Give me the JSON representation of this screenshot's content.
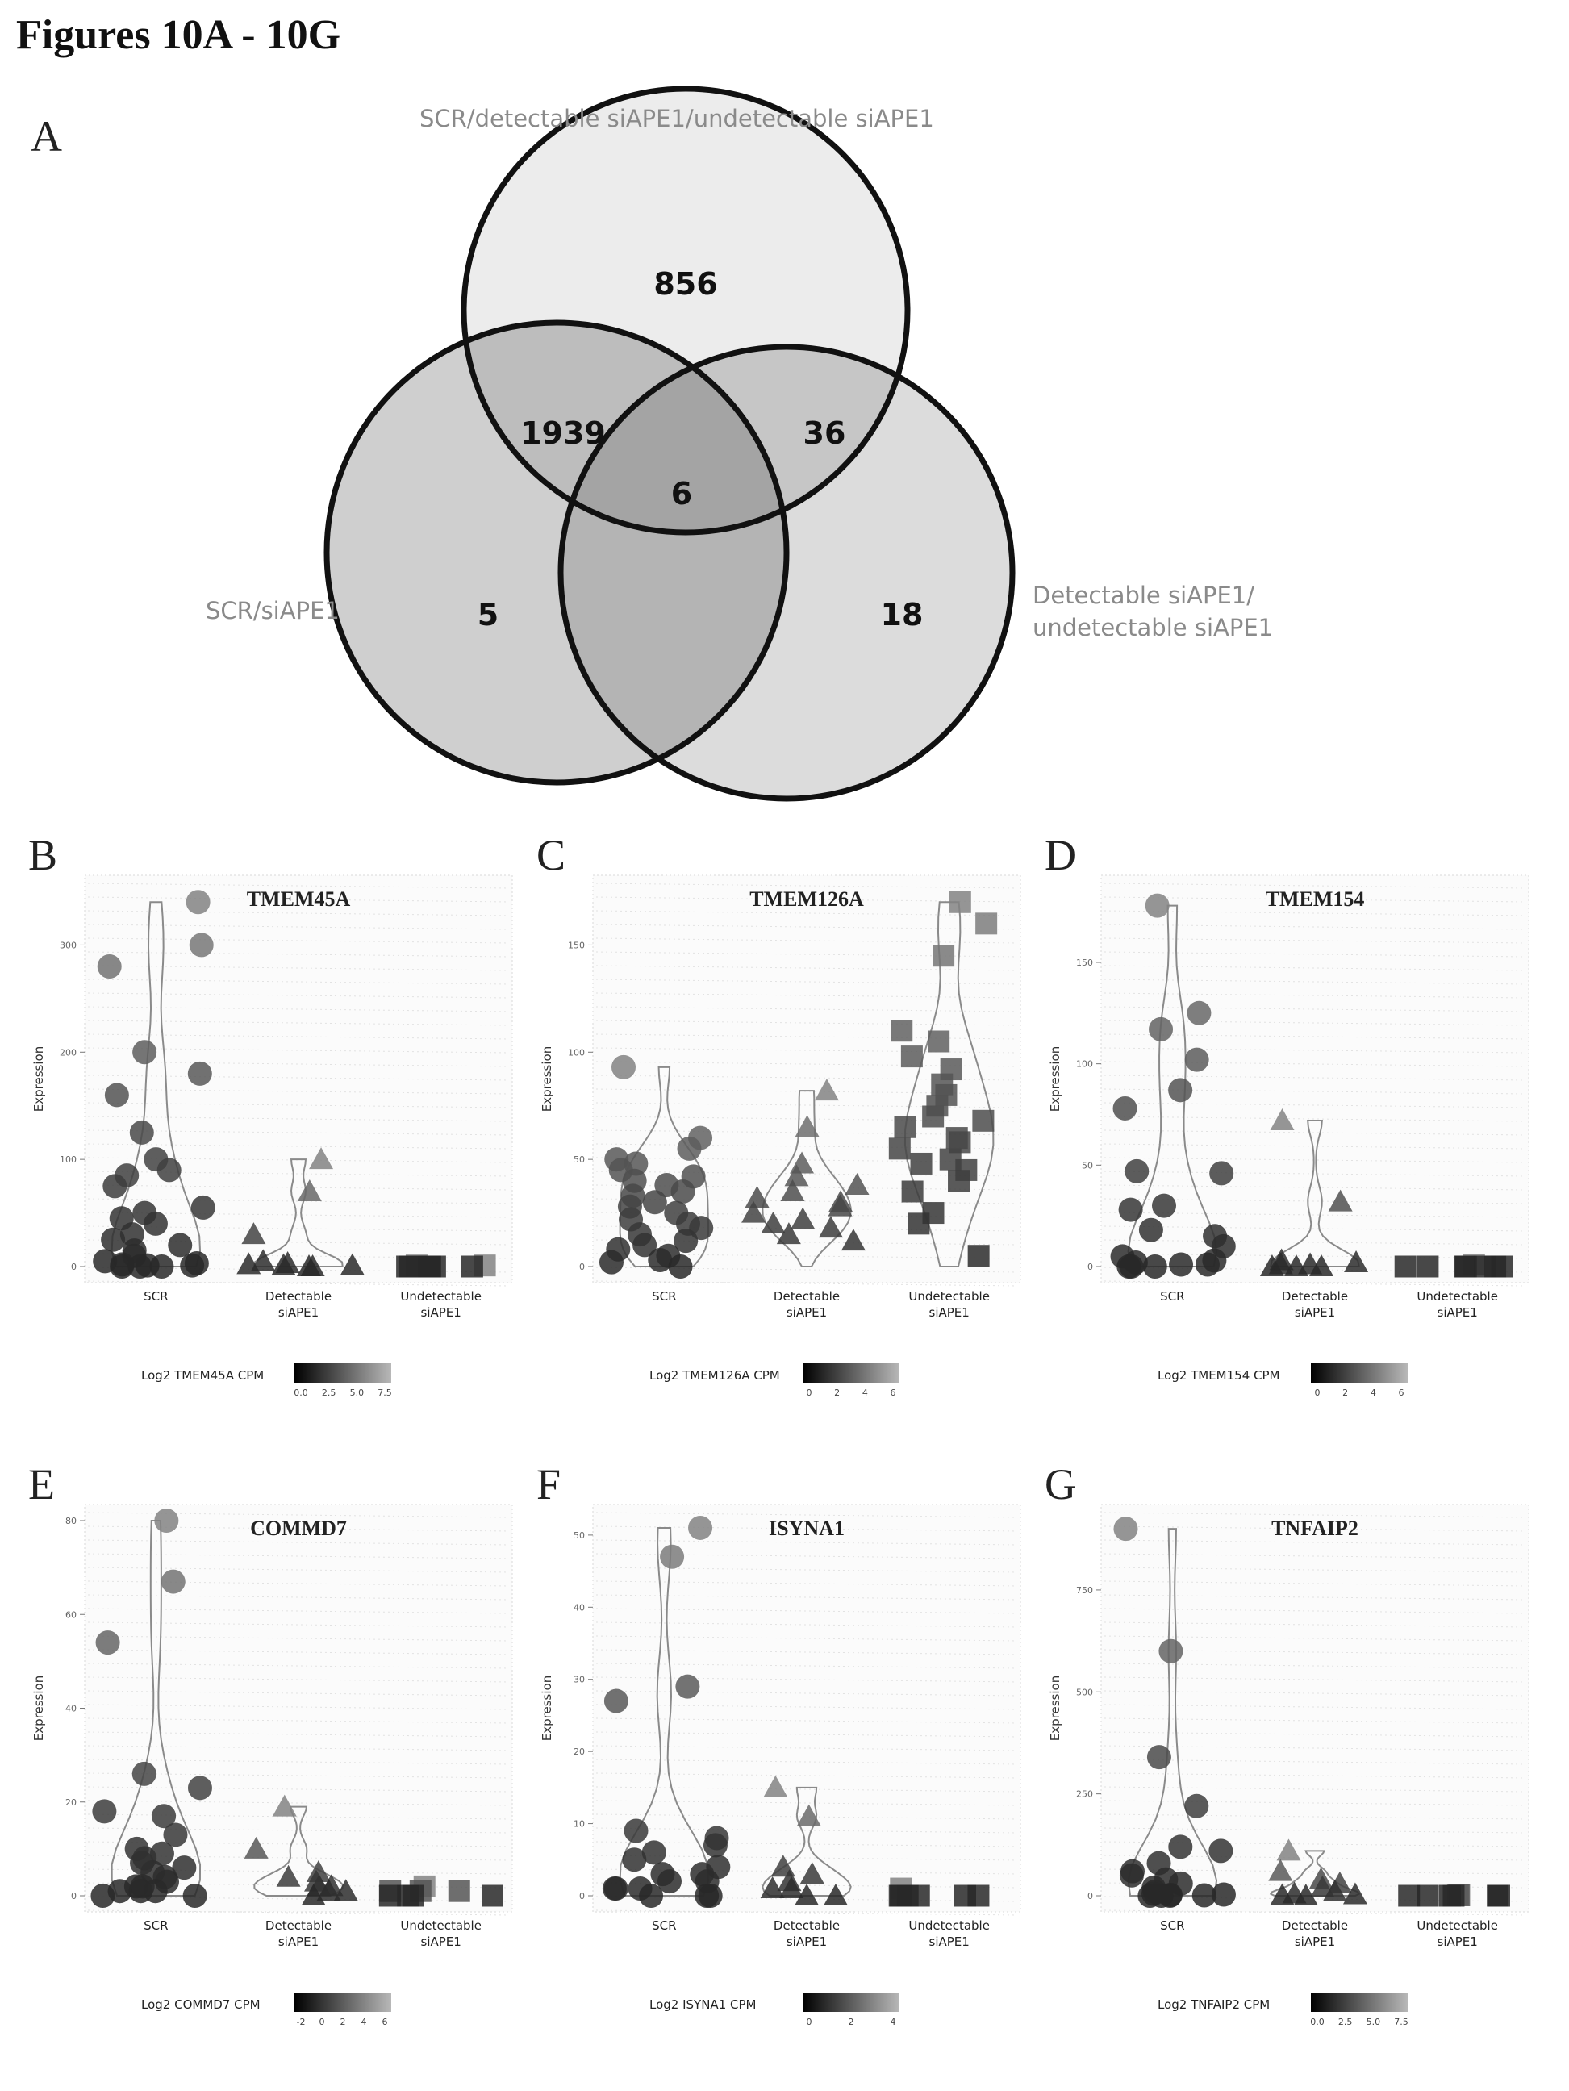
{
  "figure_title": "Figures 10A - 10G",
  "panel_a": {
    "letter": "A",
    "sets": [
      {
        "label": "SCR/detectable siAPE1/undetectable siAPE1"
      },
      {
        "label": "SCR/siAPE1"
      },
      {
        "label": "Detectable siAPE1/ undetectable siAPE1",
        "label_lines": [
          "Detectable siAPE1/",
          "undetectable siAPE1"
        ]
      }
    ],
    "regions": {
      "top_only": "856",
      "top_left": "1939",
      "top_right": "36",
      "center": "6",
      "left_only": "5",
      "right_only": "18"
    }
  },
  "chart_data": [
    {
      "panel": "B",
      "type": "scatter",
      "title": "TMEM45A",
      "ylabel": "Expression",
      "categories": [
        "SCR",
        "Detectable siAPE1",
        "Undetectable siAPE1"
      ],
      "ylim": [
        0,
        350
      ],
      "yticks": [
        0,
        100,
        200,
        300
      ],
      "series": [
        {
          "name": "SCR",
          "values": [
            340,
            300,
            280,
            200,
            180,
            160,
            125,
            100,
            90,
            85,
            75,
            55,
            50,
            45,
            40,
            30,
            25,
            20,
            15,
            10,
            5,
            3,
            2,
            1,
            1,
            0,
            0,
            0
          ]
        },
        {
          "name": "Detectable siAPE1",
          "values": [
            100,
            70,
            30,
            5,
            3,
            2,
            1,
            1,
            0,
            0
          ]
        },
        {
          "name": "Undetectable siAPE1",
          "values": [
            1,
            1,
            0,
            0,
            0,
            0,
            0,
            0,
            0,
            0
          ]
        }
      ],
      "colorbar": {
        "label": "Log2 TMEM45A CPM",
        "ticks": [
          "0.0",
          "2.5",
          "5.0",
          "7.5"
        ]
      }
    },
    {
      "panel": "C",
      "type": "scatter",
      "title": "TMEM126A",
      "ylabel": "Expression",
      "categories": [
        "SCR",
        "Detectable siAPE1",
        "Undetectable siAPE1"
      ],
      "ylim": [
        0,
        175
      ],
      "yticks": [
        0,
        50,
        100,
        150
      ],
      "series": [
        {
          "name": "SCR",
          "values": [
            93,
            60,
            55,
            50,
            48,
            45,
            42,
            40,
            38,
            35,
            33,
            30,
            28,
            25,
            22,
            20,
            18,
            15,
            12,
            10,
            8,
            5,
            3,
            2,
            0
          ]
        },
        {
          "name": "Detectable siAPE1",
          "values": [
            82,
            65,
            48,
            42,
            38,
            35,
            32,
            30,
            28,
            25,
            22,
            20,
            18,
            15,
            12
          ]
        },
        {
          "name": "Undetectable siAPE1",
          "values": [
            170,
            160,
            145,
            110,
            105,
            98,
            92,
            85,
            80,
            75,
            70,
            68,
            65,
            60,
            58,
            55,
            50,
            48,
            45,
            40,
            35,
            25,
            20,
            5
          ]
        }
      ],
      "colorbar": {
        "label": "Log2 TMEM126A CPM",
        "ticks": [
          "0",
          "2",
          "4",
          "6"
        ]
      }
    },
    {
      "panel": "D",
      "type": "scatter",
      "title": "TMEM154",
      "ylabel": "Expression",
      "categories": [
        "SCR",
        "Detectable siAPE1",
        "Undetectable siAPE1"
      ],
      "ylim": [
        0,
        185
      ],
      "yticks": [
        0,
        50,
        100,
        150
      ],
      "series": [
        {
          "name": "SCR",
          "values": [
            178,
            125,
            117,
            102,
            87,
            78,
            47,
            46,
            30,
            28,
            18,
            15,
            10,
            5,
            3,
            2,
            1,
            1,
            0,
            0,
            0
          ]
        },
        {
          "name": "Detectable siAPE1",
          "values": [
            72,
            32,
            3,
            2,
            1,
            1,
            0,
            0,
            0
          ]
        },
        {
          "name": "Undetectable siAPE1",
          "values": [
            1,
            0,
            0,
            0,
            0,
            0,
            0,
            0
          ]
        }
      ],
      "colorbar": {
        "label": "Log2 TMEM154 CPM",
        "ticks": [
          "0",
          "2",
          "4",
          "6"
        ]
      }
    },
    {
      "panel": "E",
      "type": "scatter",
      "title": "COMMD7",
      "ylabel": "Expression",
      "categories": [
        "SCR",
        "Detectable siAPE1",
        "Undetectable siAPE1"
      ],
      "ylim": [
        0,
        80
      ],
      "yticks": [
        0,
        20,
        40,
        60,
        80
      ],
      "series": [
        {
          "name": "SCR",
          "values": [
            80,
            67,
            54,
            26,
            23,
            18,
            17,
            13,
            10,
            9,
            8,
            7,
            6,
            5,
            4,
            3,
            2,
            2,
            1,
            1,
            1,
            0,
            0
          ]
        },
        {
          "name": "Detectable siAPE1",
          "values": [
            19,
            10,
            5,
            4,
            3,
            2,
            2,
            1,
            1,
            0
          ]
        },
        {
          "name": "Undetectable siAPE1",
          "values": [
            2,
            1,
            1,
            1,
            0,
            0,
            0,
            0
          ]
        }
      ],
      "colorbar": {
        "label": "Log2 COMMD7 CPM",
        "ticks": [
          "-2",
          "0",
          "2",
          "4",
          "6"
        ]
      }
    },
    {
      "panel": "F",
      "type": "scatter",
      "title": "ISYNA1",
      "ylabel": "Expression",
      "categories": [
        "SCR",
        "Detectable siAPE1",
        "Undetectable siAPE1"
      ],
      "ylim": [
        0,
        52
      ],
      "yticks": [
        0,
        10,
        20,
        30,
        40,
        50
      ],
      "series": [
        {
          "name": "SCR",
          "values": [
            51,
            47,
            29,
            27,
            9,
            8,
            7,
            6,
            5,
            4,
            3,
            3,
            2,
            2,
            1,
            1,
            1,
            0,
            0,
            0
          ]
        },
        {
          "name": "Detectable siAPE1",
          "values": [
            15,
            11,
            4,
            3,
            2,
            1,
            1,
            0,
            0
          ]
        },
        {
          "name": "Undetectable siAPE1",
          "values": [
            1,
            0,
            0,
            0,
            0,
            0,
            0
          ]
        }
      ],
      "colorbar": {
        "label": "Log2 ISYNA1 CPM",
        "ticks": [
          "0",
          "2",
          "4"
        ]
      }
    },
    {
      "panel": "G",
      "type": "scatter",
      "title": "TNFAIP2",
      "ylabel": "Expression",
      "categories": [
        "SCR",
        "Detectable siAPE1",
        "Undetectable siAPE1"
      ],
      "ylim": [
        0,
        920
      ],
      "yticks": [
        0,
        250,
        500,
        750
      ],
      "series": [
        {
          "name": "SCR",
          "values": [
            900,
            600,
            340,
            220,
            120,
            110,
            80,
            60,
            50,
            40,
            30,
            20,
            10,
            5,
            3,
            2,
            1,
            0,
            0,
            0
          ]
        },
        {
          "name": "Detectable siAPE1",
          "values": [
            110,
            60,
            40,
            30,
            20,
            10,
            5,
            3,
            1,
            0
          ]
        },
        {
          "name": "Undetectable siAPE1",
          "values": [
            2,
            1,
            0,
            0,
            0,
            0,
            0,
            0
          ]
        }
      ],
      "colorbar": {
        "label": "Log2 TNFAIP2 CPM",
        "ticks": [
          "0.0",
          "2.5",
          "5.0",
          "7.5"
        ]
      }
    }
  ]
}
